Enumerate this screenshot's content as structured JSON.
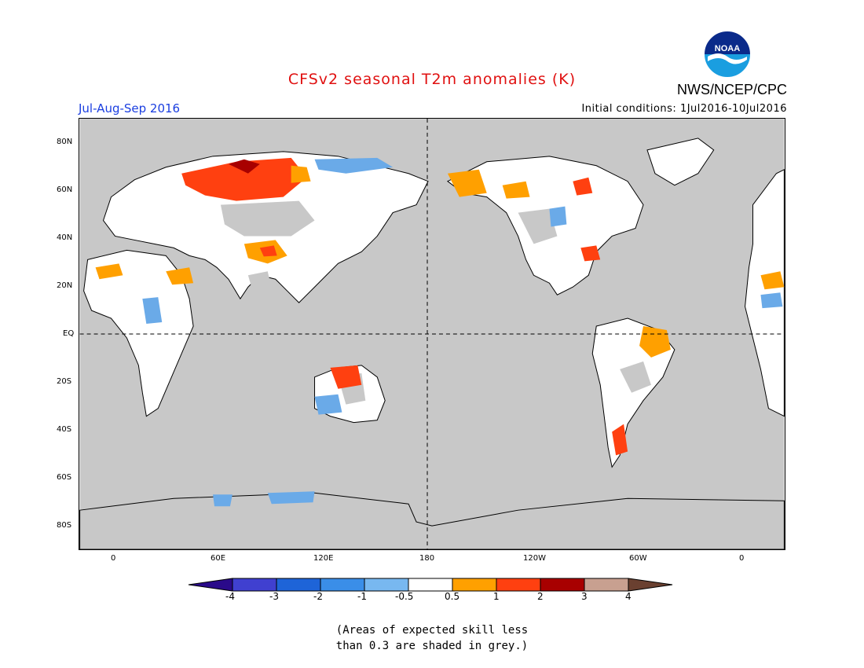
{
  "title": "CFSv2 seasonal T2m anomalies (K)",
  "organization": "NWS/NCEP/CPC",
  "logo_text": "NOAA",
  "season": "Jul-Aug-Sep 2016",
  "initial_conditions": "Initial conditions: 1Jul2016-10Jul2016",
  "lat_labels": [
    "80N",
    "60N",
    "40N",
    "20N",
    "EQ",
    "20S",
    "40S",
    "60S",
    "80S"
  ],
  "lon_labels": [
    "0",
    "60E",
    "120E",
    "180",
    "120W",
    "60W",
    "0"
  ],
  "colorbar": {
    "labels": [
      "-4",
      "-3",
      "-2",
      "-1",
      "-0.5",
      "0.5",
      "1",
      "2",
      "3",
      "4"
    ],
    "colors": [
      "#2a0a8a",
      "#4040d0",
      "#1e64d8",
      "#3a8ee8",
      "#78b8f0",
      "#ffffff",
      "#ffa000",
      "#ff4010",
      "#a80000",
      "#c8a090",
      "#6a4030"
    ]
  },
  "note_lines": [
    "(Areas of expected skill less",
    "than 0.3 are shaded in grey.)"
  ],
  "map_colors": {
    "background": "#c8c8c8",
    "orange": "#ffa000",
    "red": "#ff4010",
    "darkred": "#a80000",
    "lightblue": "#6aaae8",
    "white": "#ffffff"
  }
}
